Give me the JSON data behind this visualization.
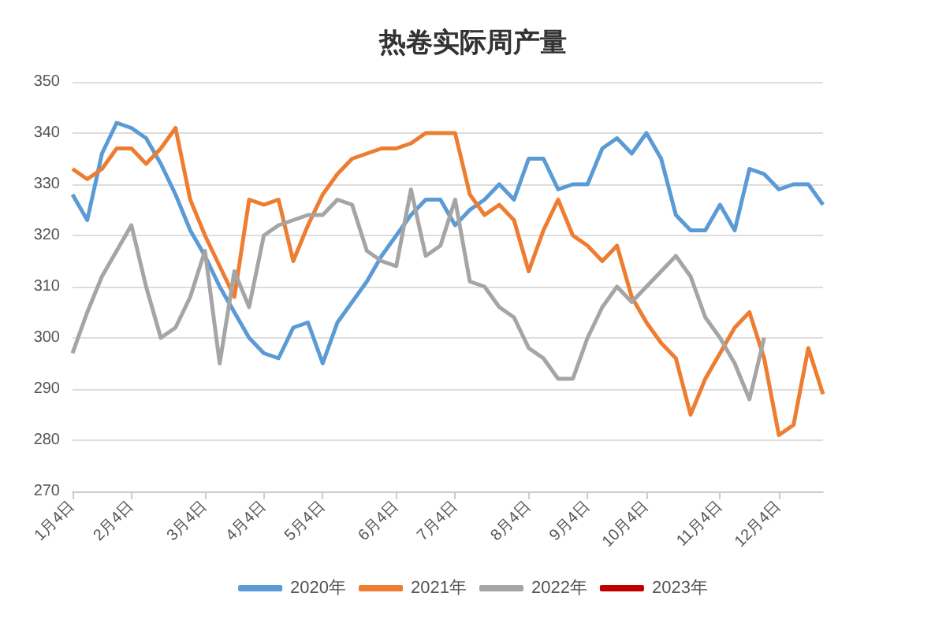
{
  "chart_data": {
    "type": "line",
    "title": "热卷实际周产量",
    "categories": [
      "1月4日",
      null,
      null,
      null,
      "2月4日",
      null,
      null,
      null,
      null,
      "3月4日",
      null,
      null,
      null,
      "4月4日",
      null,
      null,
      null,
      "5月4日",
      null,
      null,
      null,
      null,
      "6月4日",
      null,
      null,
      null,
      "7月4日",
      null,
      null,
      null,
      null,
      "8月4日",
      null,
      null,
      null,
      "9月4日",
      null,
      null,
      null,
      "10月4日",
      null,
      null,
      null,
      null,
      "11月4日",
      null,
      null,
      null,
      "12月4日",
      null,
      null,
      null
    ],
    "series": [
      {
        "name": "2020年",
        "color": "#5b9bd5",
        "values": [
          328,
          323,
          336,
          342,
          341,
          339,
          334,
          328,
          321,
          316,
          310,
          305,
          300,
          297,
          296,
          302,
          303,
          295,
          303,
          307,
          311,
          316,
          320,
          324,
          327,
          327,
          322,
          325,
          327,
          330,
          327,
          335,
          335,
          329,
          330,
          330,
          337,
          339,
          336,
          340,
          335,
          324,
          321,
          321,
          326,
          321,
          333,
          332,
          329,
          330,
          330,
          326
        ]
      },
      {
        "name": "2021年",
        "color": "#ed7d31",
        "values": [
          333,
          331,
          333,
          337,
          337,
          334,
          337,
          341,
          327,
          320,
          314,
          308,
          327,
          326,
          327,
          315,
          322,
          328,
          332,
          335,
          336,
          337,
          337,
          338,
          340,
          340,
          340,
          328,
          324,
          326,
          323,
          313,
          321,
          327,
          320,
          318,
          315,
          318,
          308,
          303,
          299,
          296,
          285,
          292,
          297,
          302,
          305,
          296,
          281,
          283,
          298,
          289
        ]
      },
      {
        "name": "2022年",
        "color": "#a5a5a5",
        "values": [
          297,
          305,
          312,
          317,
          322,
          310,
          300,
          302,
          308,
          317,
          295,
          313,
          306,
          320,
          322,
          323,
          324,
          324,
          327,
          326,
          317,
          315,
          314,
          329,
          316,
          318,
          327,
          311,
          310,
          306,
          304,
          298,
          296,
          292,
          292,
          300,
          306,
          310,
          307,
          310,
          313,
          316,
          312,
          304,
          300,
          295,
          288,
          300,
          null,
          null,
          null,
          null
        ]
      },
      {
        "name": "2023年",
        "color": "#c00000",
        "values": [
          null,
          null,
          null,
          null,
          null,
          null,
          null,
          null,
          null,
          null,
          null,
          null,
          null,
          null,
          null,
          null,
          null,
          null,
          null,
          null,
          null,
          null,
          null,
          null,
          null,
          null,
          null,
          null,
          null,
          null,
          null,
          null,
          null,
          null,
          null,
          null,
          null,
          null,
          null,
          null,
          null,
          null,
          null,
          null,
          null,
          null,
          null,
          null,
          null,
          null,
          null,
          null
        ]
      }
    ],
    "ylim": [
      270,
      350
    ],
    "yticks": [
      270,
      280,
      290,
      300,
      310,
      320,
      330,
      340,
      350
    ],
    "grid": "y",
    "legend": "bottom",
    "marker": "none",
    "line_style": "solid"
  }
}
